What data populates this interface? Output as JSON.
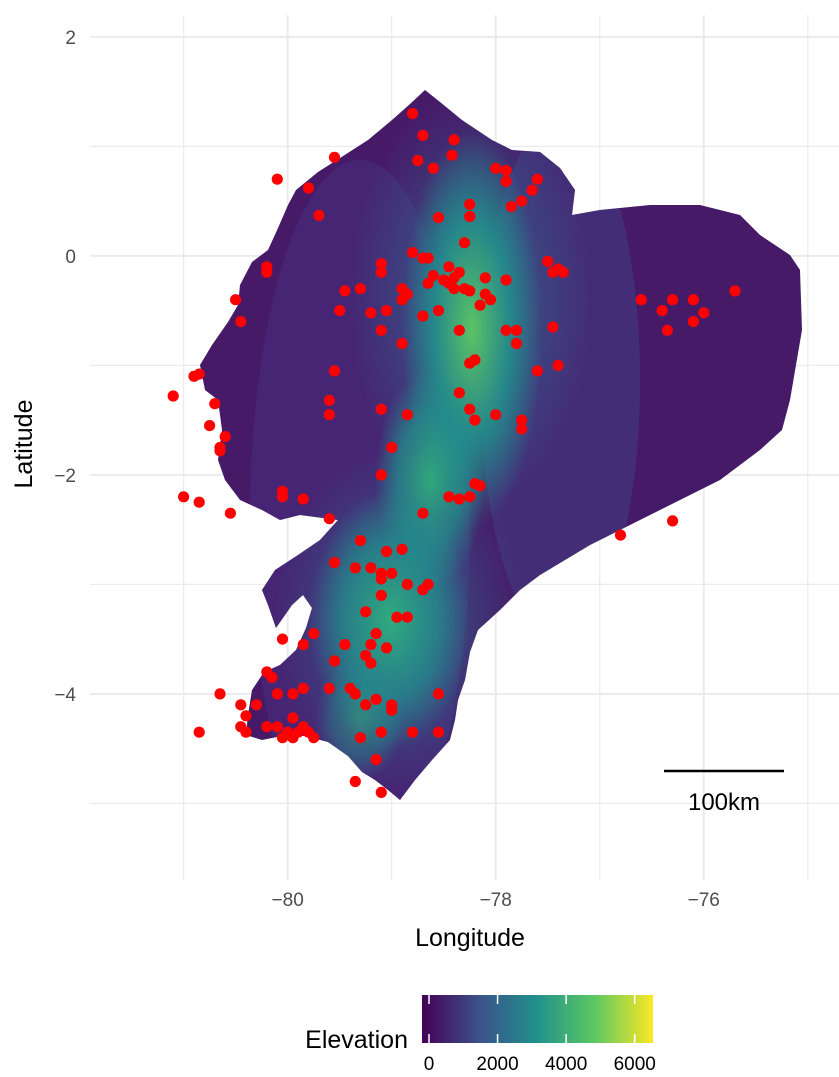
{
  "map": {
    "x_axis": {
      "label": "Longitude",
      "ticks": [
        {
          "value": -80,
          "label": "−80"
        },
        {
          "value": -78,
          "label": "−78"
        },
        {
          "value": -76,
          "label": "−76"
        }
      ]
    },
    "y_axis": {
      "label": "Latitude",
      "ticks": [
        {
          "value": 2,
          "label": "2"
        },
        {
          "value": 0,
          "label": "0"
        },
        {
          "value": -2,
          "label": "−2"
        },
        {
          "value": -4,
          "label": "−4"
        }
      ]
    },
    "extent": {
      "lon": [
        -81.9,
        -74.7
      ],
      "lat": [
        -5.7,
        2.2
      ]
    },
    "grid": true,
    "scale_bar": {
      "label": "100km"
    },
    "legend": {
      "title": "Elevation",
      "position": "bottom",
      "ticks": [
        {
          "value": 0,
          "label": "0"
        },
        {
          "value": 2000,
          "label": "2000"
        },
        {
          "value": 4000,
          "label": "4000"
        },
        {
          "value": 6000,
          "label": "6000"
        }
      ],
      "range": [
        0,
        6300
      ],
      "colors": [
        "#440154",
        "#3b528b",
        "#21918c",
        "#5ec962",
        "#fde725"
      ]
    },
    "point_color": "#ff0000",
    "points": [
      [
        -78.8,
        1.3
      ],
      [
        -78.7,
        1.1
      ],
      [
        -78.4,
        1.06
      ],
      [
        -78.42,
        0.92
      ],
      [
        -78.75,
        0.87
      ],
      [
        -78.6,
        0.8
      ],
      [
        -79.55,
        0.9
      ],
      [
        -80.1,
        0.7
      ],
      [
        -79.8,
        0.62
      ],
      [
        -79.7,
        0.37
      ],
      [
        -78.0,
        0.8
      ],
      [
        -77.9,
        0.78
      ],
      [
        -77.6,
        0.7
      ],
      [
        -77.9,
        0.68
      ],
      [
        -77.65,
        0.6
      ],
      [
        -77.75,
        0.5
      ],
      [
        -77.85,
        0.45
      ],
      [
        -78.25,
        0.47
      ],
      [
        -78.25,
        0.36
      ],
      [
        -78.55,
        0.35
      ],
      [
        -78.3,
        0.12
      ],
      [
        -78.8,
        0.03
      ],
      [
        -78.7,
        -0.02
      ],
      [
        -78.65,
        -0.02
      ],
      [
        -79.1,
        -0.07
      ],
      [
        -78.45,
        -0.1
      ],
      [
        -78.35,
        -0.15
      ],
      [
        -78.4,
        -0.2
      ],
      [
        -78.5,
        -0.22
      ],
      [
        -78.45,
        -0.25
      ],
      [
        -78.3,
        -0.3
      ],
      [
        -78.4,
        -0.3
      ],
      [
        -79.1,
        -0.15
      ],
      [
        -78.9,
        -0.3
      ],
      [
        -79.3,
        -0.3
      ],
      [
        -79.45,
        -0.32
      ],
      [
        -78.9,
        -0.4
      ],
      [
        -78.85,
        -0.35
      ],
      [
        -78.65,
        -0.25
      ],
      [
        -78.6,
        -0.18
      ],
      [
        -78.1,
        -0.2
      ],
      [
        -77.9,
        -0.22
      ],
      [
        -78.1,
        -0.35
      ],
      [
        -78.05,
        -0.4
      ],
      [
        -78.15,
        -0.45
      ],
      [
        -78.25,
        -0.32
      ],
      [
        -77.5,
        -0.05
      ],
      [
        -77.45,
        -0.15
      ],
      [
        -77.4,
        -0.12
      ],
      [
        -77.35,
        -0.15
      ],
      [
        -78.55,
        -0.5
      ],
      [
        -78.7,
        -0.55
      ],
      [
        -79.05,
        -0.5
      ],
      [
        -79.2,
        -0.52
      ],
      [
        -79.5,
        -0.5
      ],
      [
        -79.1,
        -0.68
      ],
      [
        -78.9,
        -0.8
      ],
      [
        -78.35,
        -0.68
      ],
      [
        -77.9,
        -0.68
      ],
      [
        -77.8,
        -0.68
      ],
      [
        -77.8,
        -0.8
      ],
      [
        -77.45,
        -0.65
      ],
      [
        -78.25,
        -0.98
      ],
      [
        -78.2,
        -0.95
      ],
      [
        -77.6,
        -1.05
      ],
      [
        -77.4,
        -1.0
      ],
      [
        -79.55,
        -1.05
      ],
      [
        -79.6,
        -1.32
      ],
      [
        -79.6,
        -1.45
      ],
      [
        -79.1,
        -1.4
      ],
      [
        -78.85,
        -1.45
      ],
      [
        -78.35,
        -1.25
      ],
      [
        -78.25,
        -1.4
      ],
      [
        -78.2,
        -1.5
      ],
      [
        -78.0,
        -1.45
      ],
      [
        -77.75,
        -1.5
      ],
      [
        -77.75,
        -1.58
      ],
      [
        -79.0,
        -1.75
      ],
      [
        -79.1,
        -2.0
      ],
      [
        -78.45,
        -2.2
      ],
      [
        -78.35,
        -2.22
      ],
      [
        -78.25,
        -2.2
      ],
      [
        -78.2,
        -2.08
      ],
      [
        -78.15,
        -2.1
      ],
      [
        -78.7,
        -2.35
      ],
      [
        -76.8,
        -2.55
      ],
      [
        -76.3,
        -2.42
      ],
      [
        -76.6,
        -0.4
      ],
      [
        -76.3,
        -0.4
      ],
      [
        -76.4,
        -0.5
      ],
      [
        -76.35,
        -0.68
      ],
      [
        -76.1,
        -0.4
      ],
      [
        -76.1,
        -0.6
      ],
      [
        -76.0,
        -0.52
      ],
      [
        -75.7,
        -0.32
      ],
      [
        -79.05,
        -2.7
      ],
      [
        -78.9,
        -2.68
      ],
      [
        -79.3,
        -2.6
      ],
      [
        -79.55,
        -2.8
      ],
      [
        -79.35,
        -2.85
      ],
      [
        -79.2,
        -2.85
      ],
      [
        -79.1,
        -2.9
      ],
      [
        -79.0,
        -2.9
      ],
      [
        -79.1,
        -2.95
      ],
      [
        -78.85,
        -3.0
      ],
      [
        -78.65,
        -3.0
      ],
      [
        -78.7,
        -3.05
      ],
      [
        -79.1,
        -3.1
      ],
      [
        -79.25,
        -3.25
      ],
      [
        -78.95,
        -3.3
      ],
      [
        -78.85,
        -3.3
      ],
      [
        -79.15,
        -3.45
      ],
      [
        -79.45,
        -3.55
      ],
      [
        -79.2,
        -3.55
      ],
      [
        -79.05,
        -3.58
      ],
      [
        -79.25,
        -3.65
      ],
      [
        -79.2,
        -3.72
      ],
      [
        -79.55,
        -3.7
      ],
      [
        -79.75,
        -3.45
      ],
      [
        -79.85,
        -3.55
      ],
      [
        -80.05,
        -3.5
      ],
      [
        -80.2,
        -3.8
      ],
      [
        -80.15,
        -3.85
      ],
      [
        -79.6,
        -3.95
      ],
      [
        -79.4,
        -3.95
      ],
      [
        -79.35,
        -4.0
      ],
      [
        -79.15,
        -4.05
      ],
      [
        -79.0,
        -4.1
      ],
      [
        -79.0,
        -4.15
      ],
      [
        -78.55,
        -4.0
      ],
      [
        -79.1,
        -4.35
      ],
      [
        -79.15,
        -4.6
      ],
      [
        -79.35,
        -4.8
      ],
      [
        -79.1,
        -4.9
      ],
      [
        -79.3,
        -4.4
      ],
      [
        -78.8,
        -4.35
      ],
      [
        -78.55,
        -4.35
      ],
      [
        -79.25,
        -4.1
      ],
      [
        -80.65,
        -4.0
      ],
      [
        -80.45,
        -4.1
      ],
      [
        -80.4,
        -4.2
      ],
      [
        -80.45,
        -4.3
      ],
      [
        -80.4,
        -4.35
      ],
      [
        -80.3,
        -4.1
      ],
      [
        -80.1,
        -4.0
      ],
      [
        -79.95,
        -4.0
      ],
      [
        -79.85,
        -3.95
      ],
      [
        -80.2,
        -4.3
      ],
      [
        -80.1,
        -4.3
      ],
      [
        -80.0,
        -4.35
      ],
      [
        -79.95,
        -4.4
      ],
      [
        -79.9,
        -4.35
      ],
      [
        -79.85,
        -4.3
      ],
      [
        -79.8,
        -4.35
      ],
      [
        -80.05,
        -4.4
      ],
      [
        -79.75,
        -4.4
      ],
      [
        -79.95,
        -4.22
      ],
      [
        -80.85,
        -4.35
      ],
      [
        -80.2,
        -0.15
      ],
      [
        -80.2,
        -0.1
      ],
      [
        -80.5,
        -0.4
      ],
      [
        -80.45,
        -0.6
      ],
      [
        -80.05,
        -2.2
      ],
      [
        -80.05,
        -2.15
      ],
      [
        -79.85,
        -2.22
      ],
      [
        -79.6,
        -2.4
      ],
      [
        -80.55,
        -2.35
      ],
      [
        -80.85,
        -2.25
      ],
      [
        -81.0,
        -2.2
      ],
      [
        -81.1,
        -1.28
      ],
      [
        -80.9,
        -1.1
      ],
      [
        -80.85,
        -1.08
      ],
      [
        -80.7,
        -1.35
      ],
      [
        -80.75,
        -1.55
      ],
      [
        -80.6,
        -1.65
      ],
      [
        -80.65,
        -1.78
      ],
      [
        -80.65,
        -1.75
      ]
    ]
  }
}
